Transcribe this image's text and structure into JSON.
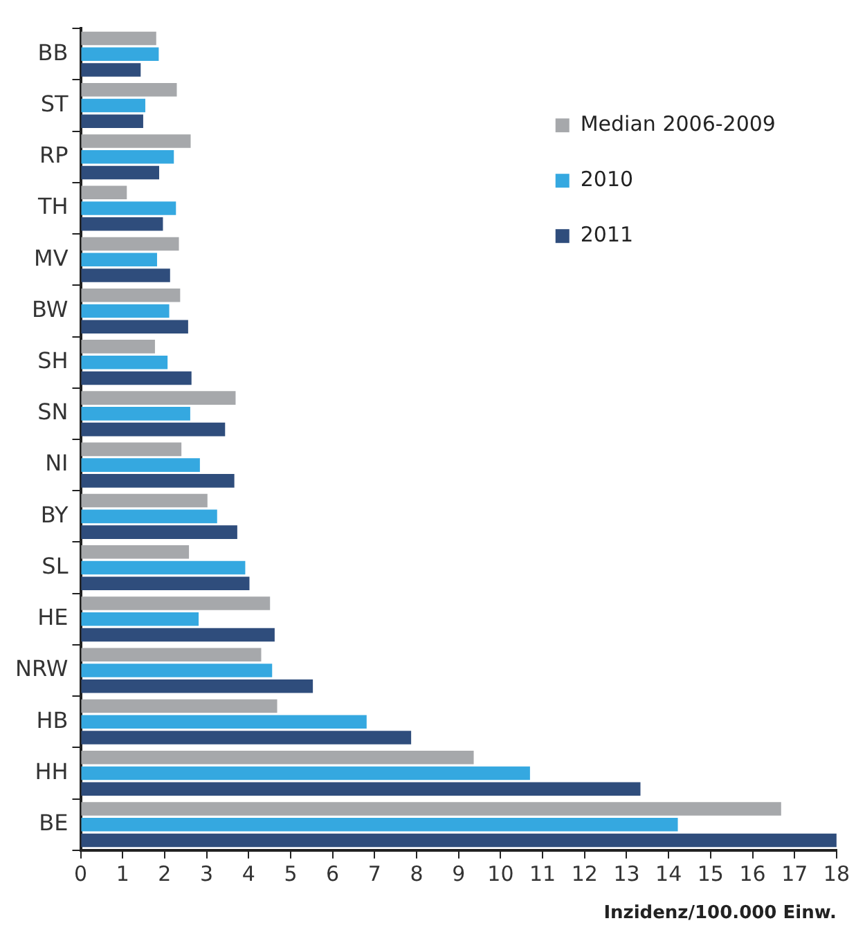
{
  "chart_data": {
    "type": "bar",
    "orientation": "horizontal",
    "xlabel": "Inzidenz/100.000 Einw.",
    "categories": [
      "BB",
      "ST",
      "RP",
      "TH",
      "MV",
      "BW",
      "SH",
      "SN",
      "NI",
      "BY",
      "SL",
      "HE",
      "NRW",
      "HB",
      "HH",
      "BE"
    ],
    "series": [
      {
        "name": "Median 2006-2009",
        "color": "#a6a8ab",
        "values": [
          1.8,
          2.29,
          2.62,
          1.1,
          2.34,
          2.37,
          1.77,
          3.69,
          2.4,
          3.02,
          2.58,
          4.51,
          4.3,
          4.68,
          9.36,
          16.68
        ]
      },
      {
        "name": "2010",
        "color": "#35a8e0",
        "values": [
          1.86,
          1.54,
          2.22,
          2.27,
          1.82,
          2.11,
          2.07,
          2.61,
          2.84,
          3.25,
          3.92,
          2.81,
          4.56,
          6.81,
          10.7,
          14.22
        ]
      },
      {
        "name": "2011",
        "color": "#2f4d7c",
        "values": [
          1.43,
          1.49,
          1.87,
          1.96,
          2.13,
          2.56,
          2.64,
          3.44,
          3.66,
          3.73,
          4.02,
          4.62,
          5.53,
          7.87,
          13.33,
          18.0
        ]
      }
    ],
    "xlim": [
      0,
      18
    ],
    "xticks": [
      0,
      1,
      2,
      3,
      4,
      5,
      6,
      7,
      8,
      9,
      10,
      11,
      12,
      13,
      14,
      15,
      16,
      17,
      18
    ],
    "legend": "top right"
  }
}
